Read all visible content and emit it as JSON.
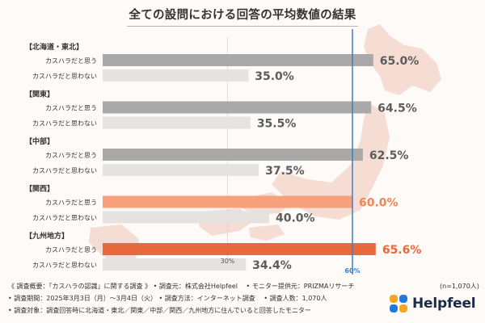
{
  "title": "全ての設問における回答の平均数値の結果",
  "colors": {
    "bar_yes": "#a9a9a9",
    "bar_no": "#e5e2e0",
    "highlight_yes": "#e8693b",
    "highlight_yes_light": "#f7a07c",
    "highlight_text": "#f08652",
    "value_text": "#5c5c5c",
    "ref_line": "#3d7fc4",
    "map": "#f3d7cc"
  },
  "chart_data": {
    "type": "bar",
    "orientation": "horizontal",
    "unit": "%",
    "xlim": [
      0,
      100
    ],
    "reference_lines": [
      {
        "value": 30,
        "label": "30%"
      },
      {
        "value": 60,
        "label": "60%"
      }
    ],
    "groups": [
      {
        "name": "【北海道・東北】",
        "rows": [
          {
            "label": "カスハラだと思う",
            "value": 65.0,
            "value_label": "65.0%"
          },
          {
            "label": "カスハラだと思わない",
            "value": 35.0,
            "value_label": "35.0%"
          }
        ]
      },
      {
        "name": "【関東】",
        "rows": [
          {
            "label": "カスハラだと思う",
            "value": 64.5,
            "value_label": "64.5%"
          },
          {
            "label": "カスハラだと思わない",
            "value": 35.5,
            "value_label": "35.5%"
          }
        ]
      },
      {
        "name": "【中部】",
        "rows": [
          {
            "label": "カスハラだと思う",
            "value": 62.5,
            "value_label": "62.5%"
          },
          {
            "label": "カスハラだと思わない",
            "value": 37.5,
            "value_label": "37.5%"
          }
        ]
      },
      {
        "name": "【関西】",
        "rows": [
          {
            "label": "カスハラだと思う",
            "value": 60.0,
            "value_label": "60.0%",
            "highlight": "light"
          },
          {
            "label": "カスハラだと思わない",
            "value": 40.0,
            "value_label": "40.0%"
          }
        ]
      },
      {
        "name": "【九州地方】",
        "rows": [
          {
            "label": "カスハラだと思う",
            "value": 65.6,
            "value_label": "65.6%",
            "highlight": "strong"
          },
          {
            "label": "カスハラだと思わない",
            "value": 34.4,
            "value_label": "34.4%"
          }
        ]
      }
    ]
  },
  "footnotes": [
    "《 調査概要：「カスハラの認識」に関する調査 》 • 調査元：株式会社Helpfeel　 • モニター提供元：PRIZMAリサーチ",
    "• 調査期間：2025年3月3日（月）～3月4日（火） • 調査方法：インターネット調査　 • 調査人数：1,070人",
    "• 調査対象：調査回答時に北海道・東北／関東／中部／関西／九州地方に住んでいると回答したモニター"
  ],
  "sample_note": "(n=1,070人)",
  "logo": {
    "text": "Helpfeel",
    "icon": "helpfeel-logo-icon"
  }
}
